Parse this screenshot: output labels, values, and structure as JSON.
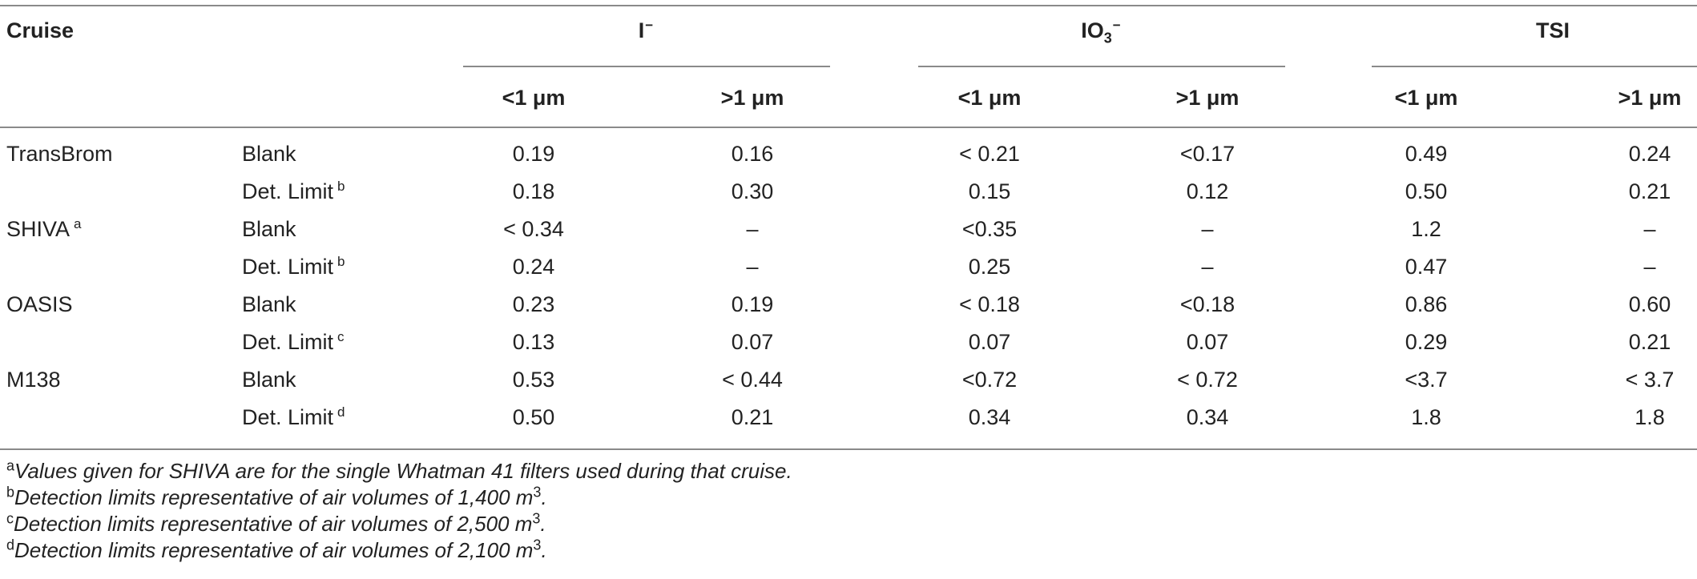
{
  "header": {
    "cruise_label": "Cruise",
    "groups": [
      {
        "label": "I",
        "superscript": "−"
      },
      {
        "label": "IO",
        "subscript": "3",
        "superscript": "−"
      },
      {
        "label": "TSI"
      }
    ],
    "subheaders": [
      "<1 μm",
      ">1 μm",
      "<1 μm",
      ">1 μm",
      "<1 μm",
      ">1 μm"
    ]
  },
  "rows": [
    {
      "cruise": "TransBrom",
      "cruise_mark": "",
      "type": "Blank",
      "type_mark": "",
      "values": [
        "0.19",
        "0.16",
        "< 0.21",
        "<0.17",
        "0.49",
        "0.24"
      ]
    },
    {
      "cruise": "",
      "cruise_mark": "",
      "type": "Det. Limit",
      "type_mark": "b",
      "values": [
        "0.18",
        "0.30",
        "0.15",
        "0.12",
        "0.50",
        "0.21"
      ]
    },
    {
      "cruise": "SHIVA",
      "cruise_mark": "a",
      "type": "Blank",
      "type_mark": "",
      "values": [
        "< 0.34",
        "–",
        "<0.35",
        "–",
        "1.2",
        "–"
      ]
    },
    {
      "cruise": "",
      "cruise_mark": "",
      "type": "Det. Limit",
      "type_mark": "b",
      "values": [
        "0.24",
        "–",
        "0.25",
        "–",
        "0.47",
        "–"
      ]
    },
    {
      "cruise": "OASIS",
      "cruise_mark": "",
      "type": "Blank",
      "type_mark": "",
      "values": [
        "0.23",
        "0.19",
        "< 0.18",
        "<0.18",
        "0.86",
        "0.60"
      ]
    },
    {
      "cruise": "",
      "cruise_mark": "",
      "type": "Det. Limit",
      "type_mark": "c",
      "values": [
        "0.13",
        "0.07",
        "0.07",
        "0.07",
        "0.29",
        "0.21"
      ]
    },
    {
      "cruise": "M138",
      "cruise_mark": "",
      "type": "Blank",
      "type_mark": "",
      "values": [
        "0.53",
        "< 0.44",
        "<0.72",
        "< 0.72",
        "<3.7",
        "< 3.7"
      ]
    },
    {
      "cruise": "",
      "cruise_mark": "",
      "type": "Det. Limit",
      "type_mark": "d",
      "values": [
        "0.50",
        "0.21",
        "0.34",
        "0.34",
        "1.8",
        "1.8"
      ]
    }
  ],
  "footnotes": [
    {
      "mark": "a",
      "text": "Values given for SHIVA are for the single Whatman 41 filters used during that cruise.",
      "exponent": ""
    },
    {
      "mark": "b",
      "text": "Detection limits representative of air volumes of 1,400 m",
      "exponent": "3",
      "end": "."
    },
    {
      "mark": "c",
      "text": "Detection limits representative of air volumes of 2,500 m",
      "exponent": "3",
      "end": "."
    },
    {
      "mark": "d",
      "text": "Detection limits representative of air volumes of 2,100 m",
      "exponent": "3",
      "end": "."
    }
  ]
}
